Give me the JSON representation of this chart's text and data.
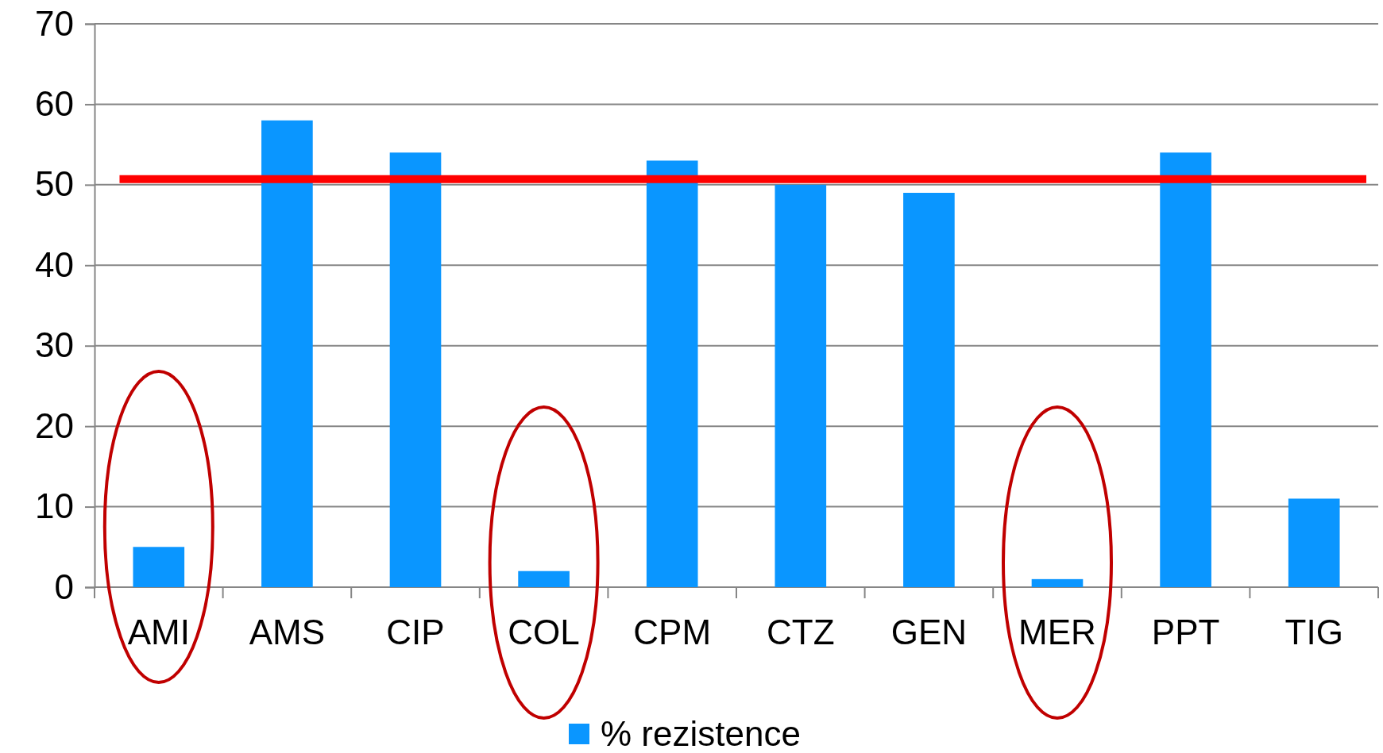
{
  "chart_data": {
    "type": "bar",
    "categories": [
      "AMI",
      "AMS",
      "CIP",
      "COL",
      "CPM",
      "CTZ",
      "GEN",
      "MER",
      "PPT",
      "TIG"
    ],
    "series": [
      {
        "name": "% rezistence",
        "color": "#0a96ff",
        "values": [
          5,
          58,
          54,
          2,
          53,
          50,
          49,
          1,
          54,
          11
        ]
      }
    ],
    "ylim": [
      0,
      70
    ],
    "yticks": [
      0,
      10,
      20,
      30,
      40,
      50,
      60,
      70
    ],
    "grid": "y",
    "legend": "bottom",
    "ref_lines": [
      {
        "axis": "y",
        "value": 50.7,
        "color": "#ff0000"
      }
    ]
  }
}
